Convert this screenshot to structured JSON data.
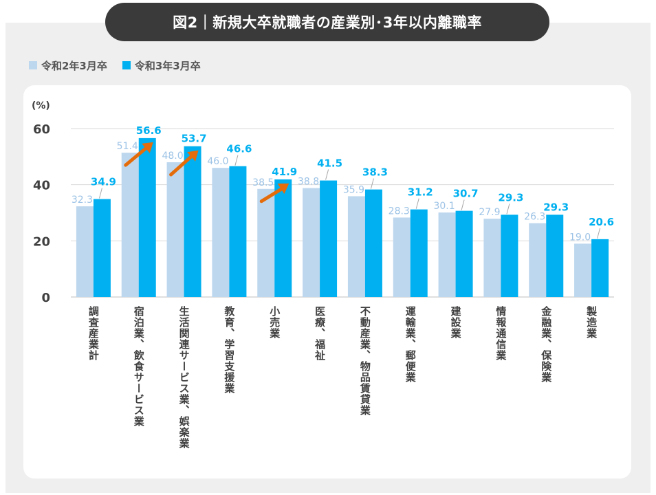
{
  "title": "図2｜新規大卒就職者の産業別･3年以内離職率",
  "colors": {
    "series_prev": "#bdd7ee",
    "series_curr": "#00b0f0",
    "label_prev": "#9dc3e6",
    "label_curr": "#00b0f0",
    "arrow": "#e46c0a",
    "title_bg": "#3a3a3a"
  },
  "chart_data": {
    "type": "bar",
    "ylabel": "(%)",
    "ylim": [
      0,
      60
    ],
    "yticks": [
      0,
      20,
      40,
      60
    ],
    "grid": true,
    "legend_position": "top-left",
    "categories": [
      "調査産業計",
      "宿泊業、飲食サービス業",
      "生活関連サービス業、娯楽業",
      "教育、学習支援業",
      "小売業",
      "医療、福祉",
      "不動産業、物品賃貸業",
      "運輸業、郵便業",
      "建設業",
      "情報通信業",
      "金融業、保険業",
      "製造業"
    ],
    "series": [
      {
        "name": "令和2年3月卒",
        "values": [
          32.3,
          51.4,
          48.0,
          46.0,
          38.5,
          38.8,
          35.9,
          28.3,
          30.1,
          27.9,
          26.3,
          19.0
        ]
      },
      {
        "name": "令和3年3月卒",
        "values": [
          34.9,
          56.6,
          53.7,
          46.6,
          41.9,
          41.5,
          38.3,
          31.2,
          30.7,
          29.3,
          29.3,
          20.6
        ]
      }
    ],
    "value_labels": {
      "prev": [
        "32.3",
        "51.4",
        "48.0",
        "46.0",
        "38.5",
        "38.8",
        "35.9",
        "28.3",
        "30.1",
        "27.9",
        "26.3",
        "19.0"
      ],
      "curr": [
        "34.9",
        "56.6",
        "53.7",
        "46.6",
        "41.9",
        "41.5",
        "38.3",
        "31.2",
        "30.7",
        "29.3",
        "29.3",
        "20.6"
      ]
    },
    "highlight_arrows": [
      "宿泊業、飲食サービス業",
      "生活関連サービス業、娯楽業",
      "小売業"
    ]
  }
}
